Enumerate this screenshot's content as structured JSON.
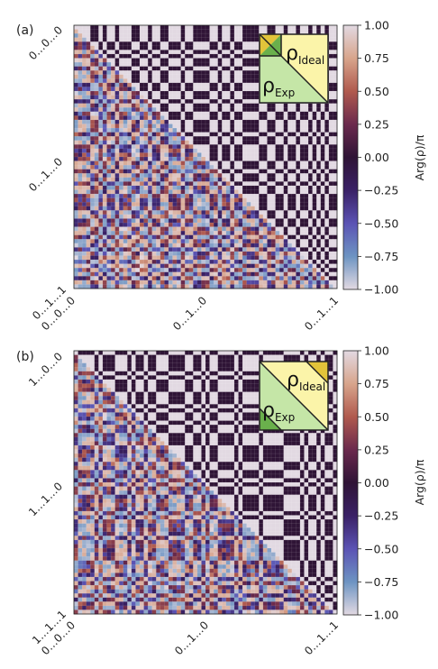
{
  "colors": {
    "inset_light_green": "#c5e6a7",
    "inset_dark_green": "#6ab04c",
    "inset_light_yellow": "#fbf4a9",
    "inset_dark_yellow": "#e2c43a"
  },
  "chart_data": [
    {
      "panel_label": "(a)",
      "type": "heatmap",
      "grid_size": 64,
      "x_ticks": [
        "0…0…0",
        "0…1…0",
        "0…1…1"
      ],
      "y_ticks": [
        "0…0…0",
        "0…1…0",
        "0…1…1"
      ],
      "colorbar": {
        "label": "Arg(ρ)/π",
        "range": [
          -1.0,
          1.0
        ],
        "ticks": [
          "1.00",
          "0.75",
          "0.50",
          "0.25",
          "0.00",
          "−0.25",
          "−0.50",
          "−0.75",
          "−1.00"
        ],
        "colormap": "twilight"
      },
      "legend": {
        "ideal": {
          "main": "ρ",
          "sub": "Ideal"
        },
        "exp": {
          "main": "ρ",
          "sub": "Exp"
        }
      },
      "seed": 11
    },
    {
      "panel_label": "(b)",
      "type": "heatmap",
      "grid_size": 64,
      "x_ticks": [
        "0…0…0",
        "0…1…0",
        "0…1…1"
      ],
      "y_ticks": [
        "1…0…0",
        "1…1…0",
        "1…1…1"
      ],
      "colorbar": {
        "label": "Arg(ρ)/π",
        "range": [
          -1.0,
          1.0
        ],
        "ticks": [
          "1.00",
          "0.75",
          "0.50",
          "0.25",
          "0.00",
          "−0.25",
          "−0.50",
          "−0.75",
          "−1.00"
        ],
        "colormap": "twilight"
      },
      "legend": {
        "ideal": {
          "main": "ρ",
          "sub": "Ideal"
        },
        "exp": {
          "main": "ρ",
          "sub": "Exp"
        }
      },
      "seed": 29
    }
  ]
}
